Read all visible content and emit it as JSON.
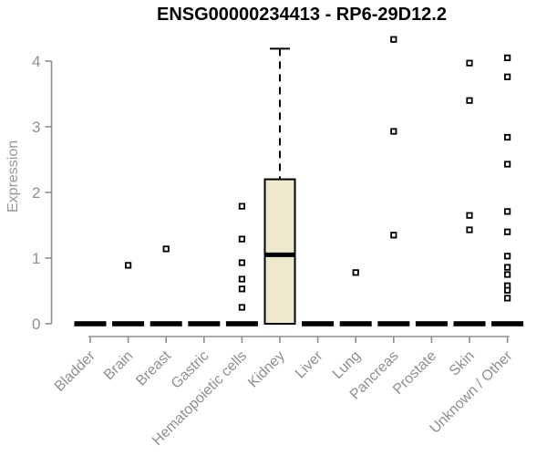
{
  "chart_data": {
    "type": "box",
    "title": "ENSG00000234413 - RP6-29D12.2",
    "ylabel": "Expression",
    "xlabel": "",
    "ylim": [
      0,
      4
    ],
    "yticks": [
      0,
      1,
      2,
      3,
      4
    ],
    "grid": false,
    "legend": "none",
    "colors": {
      "box_fill": "#EEE8CD",
      "box_stroke": "#000000",
      "median": "#000000",
      "outlier": "#000000",
      "axis": "#8F8F8F",
      "tick_label": "#8F8F8F",
      "title": "#000000",
      "background": "#FFFFFF"
    },
    "categories": [
      "Bladder",
      "Brain",
      "Breast",
      "Gastric",
      "Hematopoietic cells",
      "Kidney",
      "Liver",
      "Lung",
      "Pancreas",
      "Prostate",
      "Skin",
      "Unknown / Other"
    ],
    "series": [
      {
        "category": "Bladder",
        "q1": 0,
        "median": 0,
        "q3": 0,
        "whisker_low": 0,
        "whisker_high": 0,
        "outliers": []
      },
      {
        "category": "Brain",
        "q1": 0,
        "median": 0,
        "q3": 0,
        "whisker_low": 0,
        "whisker_high": 0,
        "outliers": [
          0.89
        ]
      },
      {
        "category": "Breast",
        "q1": 0,
        "median": 0,
        "q3": 0,
        "whisker_low": 0,
        "whisker_high": 0,
        "outliers": [
          1.14
        ]
      },
      {
        "category": "Gastric",
        "q1": 0,
        "median": 0,
        "q3": 0,
        "whisker_low": 0,
        "whisker_high": 0,
        "outliers": []
      },
      {
        "category": "Hematopoietic cells",
        "q1": 0,
        "median": 0,
        "q3": 0,
        "whisker_low": 0,
        "whisker_high": 0,
        "outliers": [
          1.79,
          1.29,
          0.93,
          0.68,
          0.53,
          0.25
        ]
      },
      {
        "category": "Kidney",
        "q1": 0,
        "median": 1.05,
        "q3": 2.2,
        "whisker_low": 0,
        "whisker_high": 4.19,
        "outliers": []
      },
      {
        "category": "Liver",
        "q1": 0,
        "median": 0,
        "q3": 0,
        "whisker_low": 0,
        "whisker_high": 0,
        "outliers": []
      },
      {
        "category": "Lung",
        "q1": 0,
        "median": 0,
        "q3": 0,
        "whisker_low": 0,
        "whisker_high": 0,
        "outliers": [
          0.78
        ]
      },
      {
        "category": "Pancreas",
        "q1": 0,
        "median": 0,
        "q3": 0,
        "whisker_low": 0,
        "whisker_high": 0,
        "outliers": [
          4.33,
          2.93,
          1.35
        ]
      },
      {
        "category": "Prostate",
        "q1": 0,
        "median": 0,
        "q3": 0,
        "whisker_low": 0,
        "whisker_high": 0,
        "outliers": []
      },
      {
        "category": "Skin",
        "q1": 0,
        "median": 0,
        "q3": 0,
        "whisker_low": 0,
        "whisker_high": 0,
        "outliers": [
          3.97,
          3.4,
          1.65,
          1.43
        ]
      },
      {
        "category": "Unknown / Other",
        "q1": 0,
        "median": 0,
        "q3": 0,
        "whisker_low": 0,
        "whisker_high": 0,
        "outliers": [
          4.05,
          3.76,
          2.84,
          2.43,
          1.71,
          1.4,
          1.03,
          0.86,
          0.75,
          0.58,
          0.51,
          0.39
        ]
      }
    ]
  }
}
